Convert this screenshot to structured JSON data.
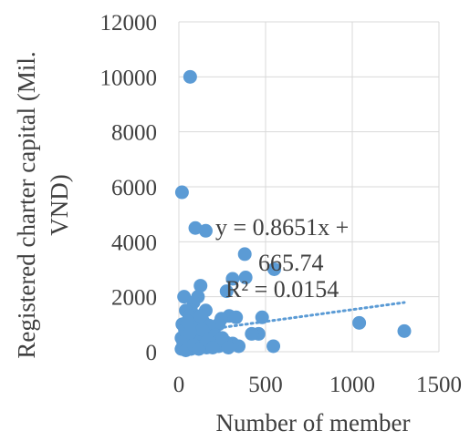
{
  "chart_data": {
    "type": "scatter",
    "xlabel": "Number of member",
    "ylabel_lines": [
      "Registered charter capital (Mil.",
      "VND)"
    ],
    "xlim": [
      0,
      1500
    ],
    "ylim": [
      0,
      12000
    ],
    "x_ticks": [
      0,
      500,
      1000,
      1500
    ],
    "y_ticks": [
      0,
      2000,
      4000,
      6000,
      8000,
      10000,
      12000
    ],
    "grid": "vertical-and-horizontal",
    "point_color": "#5b9bd5",
    "trendline": {
      "type": "linear",
      "style": "dotted",
      "slope": 0.8651,
      "intercept": 665.74,
      "x_range": [
        10,
        1300
      ],
      "equation_lines": [
        "y = 0.8651x +",
        "665.74"
      ],
      "r2_label": "R² = 0.0154"
    },
    "points": [
      {
        "x": 65,
        "y": 10000
      },
      {
        "x": 18,
        "y": 5800
      },
      {
        "x": 95,
        "y": 4500
      },
      {
        "x": 155,
        "y": 4400
      },
      {
        "x": 380,
        "y": 3550
      },
      {
        "x": 550,
        "y": 3000
      },
      {
        "x": 385,
        "y": 2700
      },
      {
        "x": 310,
        "y": 2650
      },
      {
        "x": 125,
        "y": 2400
      },
      {
        "x": 30,
        "y": 2000
      },
      {
        "x": 275,
        "y": 2200
      },
      {
        "x": 110,
        "y": 2000
      },
      {
        "x": 85,
        "y": 1800
      },
      {
        "x": 70,
        "y": 1500
      },
      {
        "x": 155,
        "y": 1500
      },
      {
        "x": 40,
        "y": 1500
      },
      {
        "x": 290,
        "y": 1300
      },
      {
        "x": 330,
        "y": 1250
      },
      {
        "x": 480,
        "y": 1250
      },
      {
        "x": 245,
        "y": 1200
      },
      {
        "x": 1040,
        "y": 1050
      },
      {
        "x": 1300,
        "y": 750
      },
      {
        "x": 460,
        "y": 650
      },
      {
        "x": 420,
        "y": 650
      },
      {
        "x": 545,
        "y": 200
      },
      {
        "x": 345,
        "y": 200
      },
      {
        "x": 310,
        "y": 300
      },
      {
        "x": 230,
        "y": 200
      },
      {
        "x": 270,
        "y": 350
      },
      {
        "x": 190,
        "y": 450
      },
      {
        "x": 170,
        "y": 600
      },
      {
        "x": 200,
        "y": 800
      },
      {
        "x": 230,
        "y": 1000
      },
      {
        "x": 140,
        "y": 1100
      },
      {
        "x": 100,
        "y": 1200
      },
      {
        "x": 60,
        "y": 1300
      },
      {
        "x": 20,
        "y": 1000
      },
      {
        "x": 15,
        "y": 500
      },
      {
        "x": 15,
        "y": 100
      },
      {
        "x": 30,
        "y": 200
      },
      {
        "x": 45,
        "y": 600
      },
      {
        "x": 50,
        "y": 900
      },
      {
        "x": 60,
        "y": 300
      },
      {
        "x": 70,
        "y": 100
      },
      {
        "x": 80,
        "y": 700
      },
      {
        "x": 90,
        "y": 400
      },
      {
        "x": 100,
        "y": 150
      },
      {
        "x": 110,
        "y": 900
      },
      {
        "x": 120,
        "y": 500
      },
      {
        "x": 130,
        "y": 250
      },
      {
        "x": 140,
        "y": 700
      },
      {
        "x": 150,
        "y": 350
      },
      {
        "x": 160,
        "y": 150
      },
      {
        "x": 175,
        "y": 950
      },
      {
        "x": 185,
        "y": 250
      },
      {
        "x": 210,
        "y": 600
      },
      {
        "x": 220,
        "y": 350
      },
      {
        "x": 35,
        "y": 800
      },
      {
        "x": 55,
        "y": 150
      },
      {
        "x": 75,
        "y": 500
      },
      {
        "x": 95,
        "y": 1000
      },
      {
        "x": 105,
        "y": 650
      },
      {
        "x": 25,
        "y": 350
      },
      {
        "x": 40,
        "y": 50
      },
      {
        "x": 85,
        "y": 250
      },
      {
        "x": 115,
        "y": 100
      },
      {
        "x": 135,
        "y": 800
      },
      {
        "x": 165,
        "y": 400
      },
      {
        "x": 195,
        "y": 150
      },
      {
        "x": 250,
        "y": 500
      },
      {
        "x": 285,
        "y": 150
      },
      {
        "x": 65,
        "y": 700
      },
      {
        "x": 50,
        "y": 1100
      },
      {
        "x": 125,
        "y": 1300
      }
    ]
  }
}
